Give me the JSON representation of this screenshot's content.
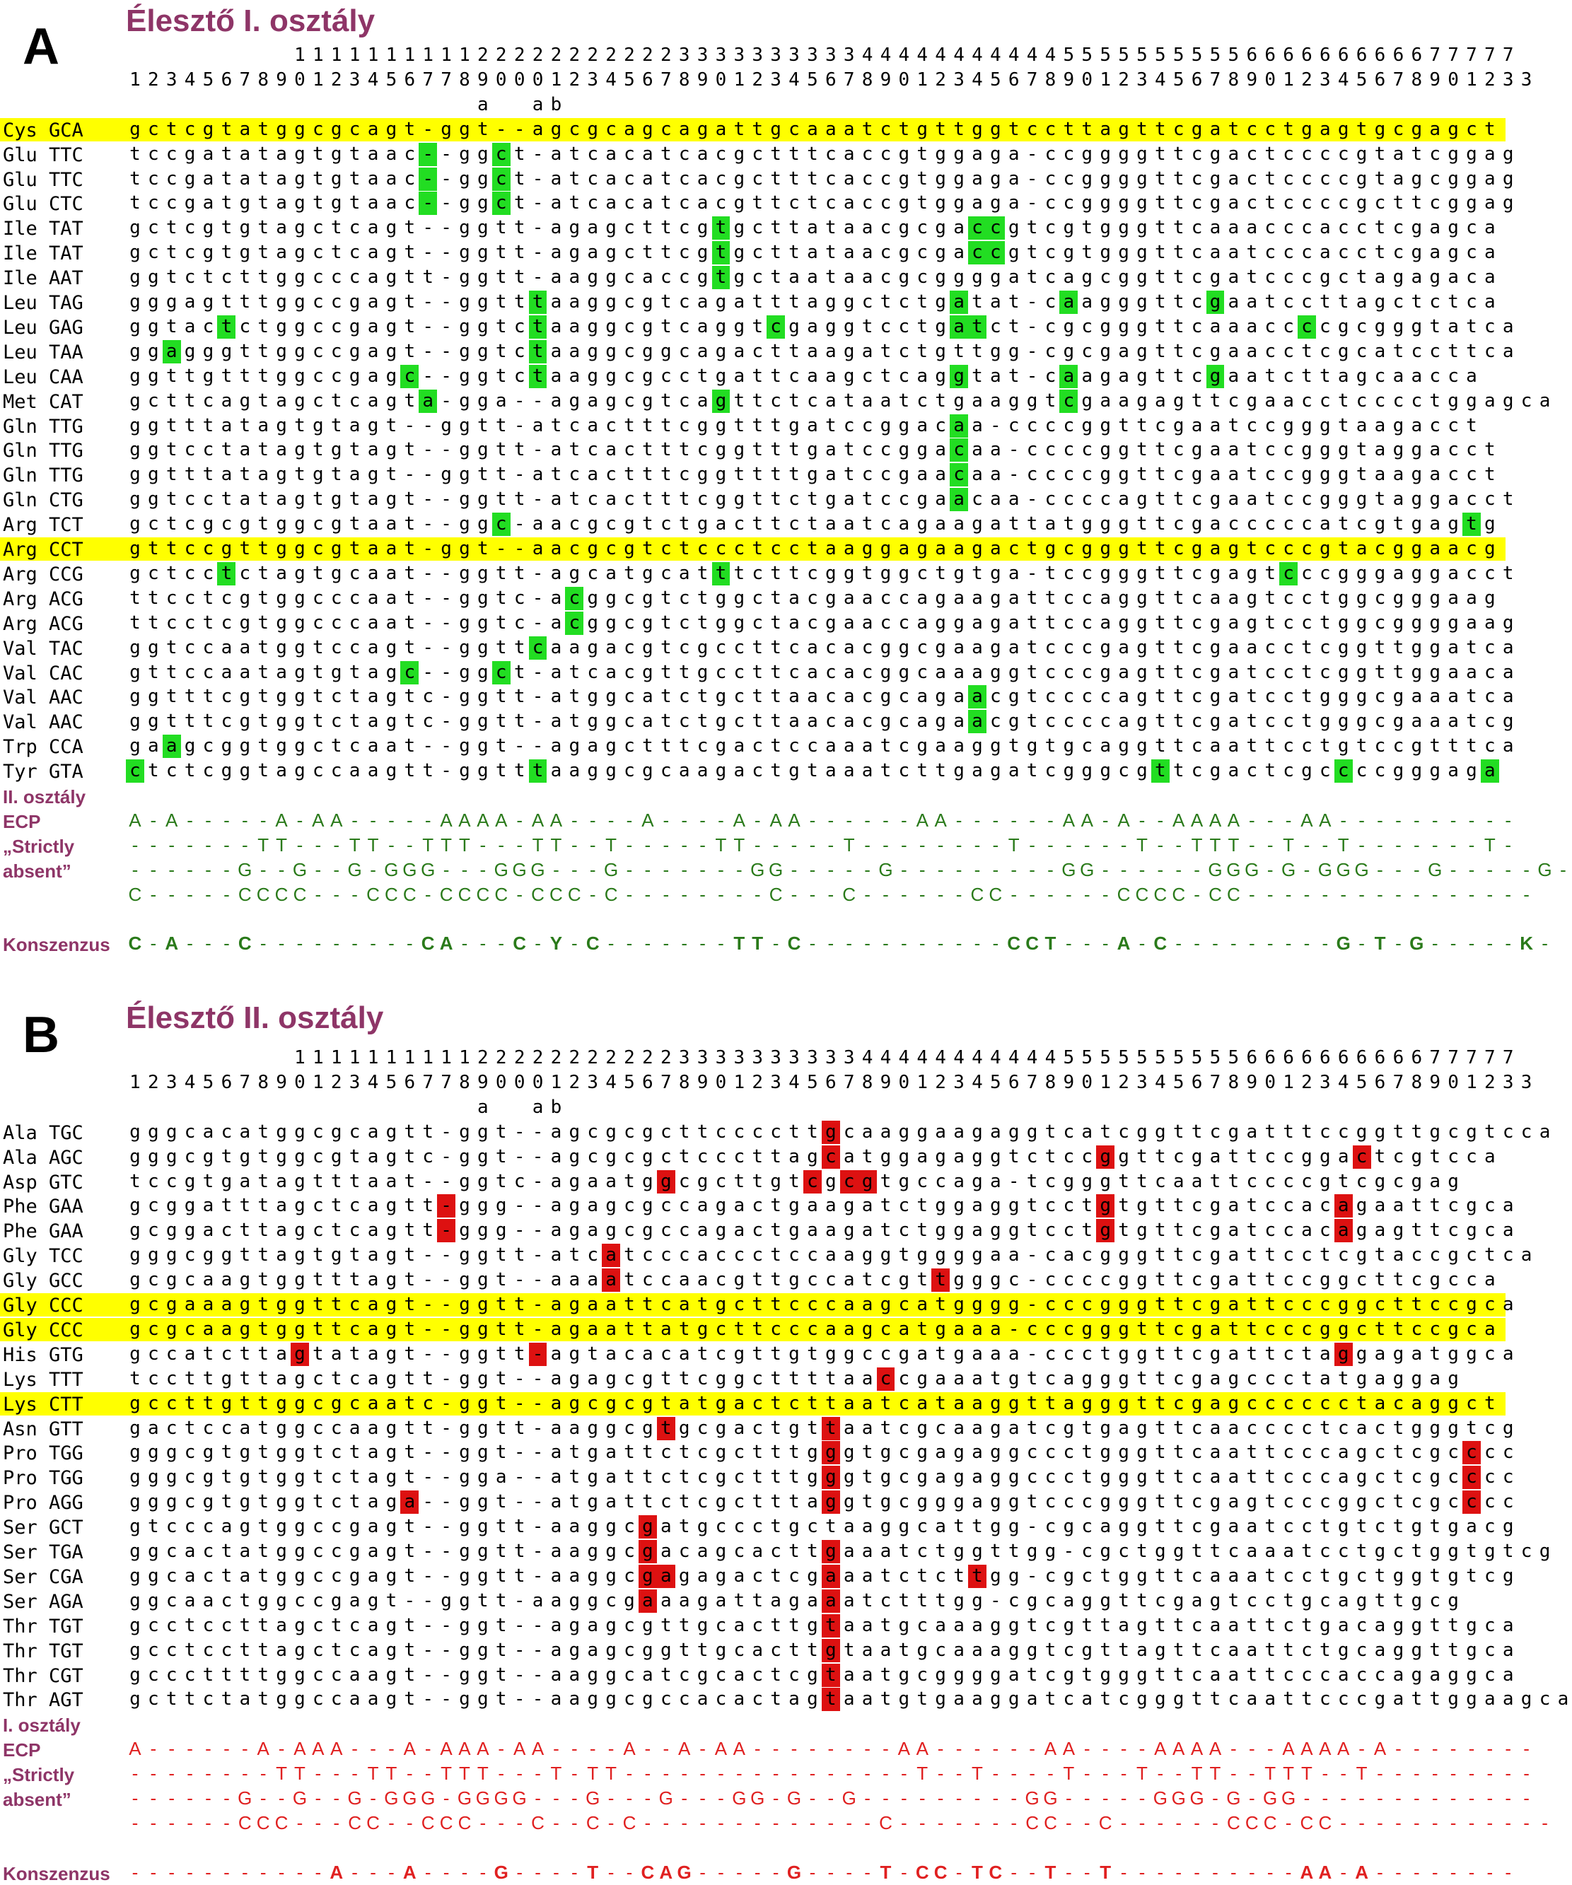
{
  "panel_a": {
    "letter": "A",
    "title": "Élesztő I. osztály",
    "ruler1": "         1111111111222222222223333333333444444444445555555555666666666677777",
    "ruler2": "12345678901234567789000123456789012345678901234567890123456789012345678901233",
    "ruler_ab": "                   a  ab",
    "rows": [
      {
        "label": "Cys GCA",
        "seq": "gctcgtatggcgcagt-ggt--agcgcagcagattgcaaatctgttggtccttagttcgatcctgagtgcgagct",
        "hl": true,
        "marks": []
      },
      {
        "label": "Glu TTC",
        "seq": "tccgatatagtgtaac--ggct-atcacatcacgctttcaccgtggaga-ccggggttcgactccccgtatcggag",
        "marks": [
          16,
          20
        ]
      },
      {
        "label": "Glu TTC",
        "seq": "tccgatatagtgtaac--ggct-atcacatcacgctttcaccgtggaga-ccggggttcgactccccgtagcggag",
        "marks": [
          16,
          20
        ]
      },
      {
        "label": "Glu CTC",
        "seq": "tccgatgtagtgtaac--ggct-atcacatcacgttctcaccgtggaga-ccggggttcgactccccgcttcggag",
        "marks": [
          16,
          20
        ]
      },
      {
        "label": "Ile TAT",
        "seq": "gctcgtgtagctcagt--ggtt-agagcttcgtgcttataacgcgaccgtcgtgggttcaaacccacctcgagca",
        "marks": [
          32,
          46,
          47
        ]
      },
      {
        "label": "Ile TAT",
        "seq": "gctcgtgtagctcagt--ggtt-agagcttcgtgcttataacgcgaccgtcgtgggttcaatcccacctcgagca",
        "marks": [
          32,
          46,
          47
        ]
      },
      {
        "label": "Ile AAT",
        "seq": "ggtctcttggcccagtt-ggtt-aaggcaccgtgctaataacgcggggatcagcggttcgatcccgctagagaca",
        "marks": [
          32
        ]
      },
      {
        "label": "Leu TAG",
        "seq": "gggagtttggccgagt--ggtttaaggcgtcagatttaggctctgatat-caagggttcgaatccttagctctca",
        "marks": [
          22,
          45,
          51,
          59
        ]
      },
      {
        "label": "Leu GAG",
        "seq": "ggtactctggccgagt--ggtctaaggcgtcaggtcgaggtcctgatct-cgcgggttcaaaccccgcgggtatca",
        "marks": [
          5,
          22,
          35,
          45,
          46,
          64
        ]
      },
      {
        "label": "Leu TAA",
        "seq": "ggagggttggccgagt--ggtctaaggcggcagacttaagatctgttgg-cgcgagttcgaacctcgcatccttca",
        "marks": [
          2,
          22
        ]
      },
      {
        "label": "Leu CAA",
        "seq": "ggttgtttggccgagc--ggtctaaggcgcctgattcaagctcaggtat-caagagttcgaatcttagcaacca",
        "marks": [
          15,
          22,
          45,
          51,
          59
        ]
      },
      {
        "label": "Met CAT",
        "seq": "gcttcagtagctcagta-gga--agagcgtcagttctcataatctgaaggtcgaagagttcgaacctcccctggagca",
        "marks": [
          16,
          32,
          51
        ]
      },
      {
        "label": "Gln TTG",
        "seq": "ggtttatagtgtagt--ggtt-atcactttcggtttgatccggacaa-ccccggttcgaatccgggtaagacct",
        "marks": [
          45
        ]
      },
      {
        "label": "Gln TTG",
        "seq": "ggtcctatagtgtagt--ggtt-atcactttcggtttgatccggacaa-ccccggttcgaatccgggtaggacct",
        "marks": [
          45
        ]
      },
      {
        "label": "Gln TTG",
        "seq": "ggtttatagtgtagt--ggtt-atcactttcggttttgatccgaacaa-ccccggttcgaatccgggtaagacct",
        "marks": [
          45
        ]
      },
      {
        "label": "Gln CTG",
        "seq": "ggtcctatagtgtagt--ggtt-atcactttcggttctgatccgaacaa-ccccagttcgaatccgggtaggacct",
        "marks": [
          45
        ]
      },
      {
        "label": "Arg TCT",
        "seq": "gctcgcgtggcgtaat--ggc-aacgcgtctgacttctaatcagaagattatgggttcgacccccatcgtgagtg",
        "marks": [
          20,
          73
        ]
      },
      {
        "label": "Arg CCT",
        "seq": "gttccgttggcgtaat-ggt--aacgcgtctccctcctaaggagaagactgcgggttcgagtcccgtacggaacg",
        "hl": true,
        "marks": []
      },
      {
        "label": "Arg CCG",
        "seq": "gctcctctagtgcaat--ggtt-agcatgcatttcttcggtggctgtga-tccgggttcgagtcccgggaggacct",
        "marks": [
          5,
          32,
          63
        ]
      },
      {
        "label": "Arg ACG",
        "seq": "ttcctcgtggcccaat--ggtc-acggcgtctggctacgaaccagaagattccaggttcaagtcctggcgggaag",
        "marks": [
          24
        ]
      },
      {
        "label": "Arg ACG",
        "seq": "ttcctcgtggcccaat--ggtc-acggcgtctggctacgaaccaggagattccaggttcgagtcctggcggggaag",
        "marks": [
          24
        ]
      },
      {
        "label": "Val TAC",
        "seq": "ggtccaatggtccagt--ggttcaagacgtcgccttcacacggcgaagatcccgagttcgaacctcggttggatca",
        "marks": [
          22
        ]
      },
      {
        "label": "Val CAC",
        "seq": "gttccaatagtgtagc--ggct-atcacgttgccttcacacggcaaaggtcccgagttcgatcctcggttggaaca",
        "marks": [
          15,
          20
        ]
      },
      {
        "label": "Val AAC",
        "seq": "ggtttcgtggtctagtc-ggtt-atggcatctgcttaacacgcagaacgtccccagttcgatcctgggcgaaatca",
        "marks": [
          46
        ]
      },
      {
        "label": "Val AAC",
        "seq": "ggtttcgtggtctagtc-ggtt-atggcatctgcttaacacgcagaacgtccccagttcgatcctgggcgaaatcg",
        "marks": [
          46
        ]
      },
      {
        "label": "Trp CCA",
        "seq": "gaagcggtggctcaat--ggt--agagctttcgactccaaatcgaaggtgtgcaggttcaattcctgtccgtttca",
        "marks": [
          2
        ]
      },
      {
        "label": "Tyr GTA",
        "seq": "ctctcggtagccaagtt-ggtttaaggcgcaagactgtaaatcttgagatcgggcgttcgactcgccccgggaga",
        "marks": [
          0,
          22,
          56,
          66,
          74
        ]
      }
    ],
    "other_class_label": "II. osztály",
    "ecp_label": "ECP",
    "strict_label1": "„Strictly",
    "strict_label2": "absent”",
    "consensus_label": "Konszenzus",
    "ecp": "A-A-----A-AA-----AAAA-AA----A----A-AA------AA------AA-A--AAAA---AA----------",
    "strict1": "-------TT---TT--TTT---TT--T-----TT-----T--------T------T--TTT--T--T-------T-",
    "strict2": "------G--G--G-GGG---GGG---G-------GG-----G---------GG------GGG-G-GGG---G-----G-",
    "strict3": "C-----CCCC---CCC-CCCC-CCC-C--------C---C------CC------CCCC-CC----------------",
    "consensus": "C-A---C---------CA---C-Y-C-------TT-C-----------CCT---A-C---------G-T-G-----K-"
  },
  "panel_b": {
    "letter": "B",
    "title": "Élesztő II. osztály",
    "ruler1": "         1111111111222222222223333333333444444444445555555555666666666677777",
    "ruler2": "12345678901234567789000123456789012345678901234567890123456789012345678901233",
    "ruler_ab": "                   a  ab",
    "rows": [
      {
        "label": "Ala TGC",
        "seq": "gggcacatggcgcagtt-ggt--agcgcgcttccccttgcaaggaagaggtcatcggttcgatttccggttgcgtcca",
        "marks": [
          38
        ]
      },
      {
        "label": "Ala AGC",
        "seq": "gggcgtgtggcgtagtc-ggt--agcgcgctcccttagcatggagaggtctccggttcgattccggactcgtcca",
        "marks": [
          38,
          53,
          67
        ]
      },
      {
        "label": "Asp GTC",
        "seq": "tccgtgatagtttaat--ggtc-agaatggcgcttgtcgcgtgccaga-tcgggttcaattccccgtcgcgag",
        "marks": [
          29,
          37,
          39,
          40
        ]
      },
      {
        "label": "Phe GAA",
        "seq": "gcggatttagctcagtt-ggg--agagcgccagactgaagatctggaggtcctgtgttcgatccacagaattcgca",
        "marks": [
          17,
          53,
          66
        ]
      },
      {
        "label": "Phe GAA",
        "seq": "gcggacttagctcagtt-ggg--agagcgccagactgaagatctggaggtcctgtgttcgatccacagagttcgca",
        "marks": [
          17,
          53,
          66
        ]
      },
      {
        "label": "Gly TCC",
        "seq": "gggcggttagtgtagt--ggtt-atcatcccaccctccaaggtggggaa-cacgggttcgattcctcgtaccgctca",
        "marks": [
          26
        ]
      },
      {
        "label": "Gly GCC",
        "seq": "gcgcaagtggtttagt--ggt--aaaatccaacgttgccatcgttgggc-ccccggttcgattccggcttcgcca",
        "marks": [
          26,
          44
        ]
      },
      {
        "label": "Gly CCC",
        "seq": "gcgaaagtggttcagt--ggtt-agaattcatgcttcccaagcatgggg-cccgggttcgattcccggcttccgca",
        "hl": true,
        "marks": []
      },
      {
        "label": "Gly CCC",
        "seq": "gcgcaagtggttcagt--ggtt-agaattatgcttcccaagcatgaaa-cccgggttcgattcccggcttccgca",
        "hl": true,
        "marks": []
      },
      {
        "label": "His GTG",
        "seq": "gccatcttagtatagt--ggtt-agtacacatcgttgtggccgatgaaa-ccctggttcgattctaggagatggca",
        "marks": [
          9,
          22,
          66
        ]
      },
      {
        "label": "Lys TTT",
        "seq": "tccttgttagctcagtt-ggt--agagcgttcggcttttaaccgaaatgtcagggttcgagccctatgaggag",
        "marks": [
          41
        ]
      },
      {
        "label": "Lys CTT",
        "seq": "gccttgttggcgcaatc-ggt--agcgcgtatgactcttaatcataaggttagggttcgagcccccctacaggct",
        "hl": true,
        "marks": []
      },
      {
        "label": "Asn GTT",
        "seq": "gactccatggccaagtt-ggtt-aaggcgtgcgactgttaatcgcaagatcgtgagttcaacccctcactgggtcg",
        "marks": [
          29,
          38
        ]
      },
      {
        "label": "Pro TGG",
        "seq": "gggcgtgtggtctagt--ggt--atgattctcgctttgggtgcgagaggccctgggttcaattcccagctcgcccc",
        "marks": [
          38,
          73
        ]
      },
      {
        "label": "Pro TGG",
        "seq": "gggcgtgtggtctagt--gga--atgattctcgctttgggtgcgagaggccctgggttcaattcccagctcgcccc",
        "marks": [
          38,
          73
        ]
      },
      {
        "label": "Pro AGG",
        "seq": "gggcgtgtggtctaga--ggt--atgattctcgctttaggtgcgggaggtcccgggttcgagtcccggctcgcccc",
        "marks": [
          15,
          38,
          73
        ]
      },
      {
        "label": "Ser GCT",
        "seq": "gtcccagtggccgagt--ggtt-aaggcgatgccctgctaaggcattgg-cgcaggttcgaatcctgtctgtgacg",
        "marks": [
          28
        ]
      },
      {
        "label": "Ser TGA",
        "seq": "ggcactatggccgagt--ggtt-aaggcgacagcacttgaaatctggttgg-cgctggttcaaatcctgctggtgtcg",
        "marks": [
          28,
          38
        ]
      },
      {
        "label": "Ser CGA",
        "seq": "ggcactatggccgagt--ggtt-aaggcgagagactcgaaatctcttgg-cgctggttcaaatcctgctggtgtcg",
        "marks": [
          28,
          29,
          38,
          46
        ]
      },
      {
        "label": "Ser AGA",
        "seq": "ggcaactggccgagt--ggtt-aaggcgaaagattagaaatctttgg-cgcaggttcgagtcctgcagttgcg",
        "marks": [
          28,
          38
        ]
      },
      {
        "label": "Thr TGT",
        "seq": "gcctccttagctcagt--ggt--agagcgttgcacttgtaatgcaaaggtcgttagttcaattctgacaggttgca",
        "marks": [
          38
        ]
      },
      {
        "label": "Thr TGT",
        "seq": "gcctccttagctcagt--ggt--agagcggttgcacttgtaatgcaaaggtcgttagttcaattctgcaggttgca",
        "marks": [
          38
        ]
      },
      {
        "label": "Thr CGT",
        "seq": "gcccttttggccaagt--ggt--aaggcatcgcactcgtaatgcggggatcgtgggttcaattcccaccagaggca",
        "marks": [
          38
        ]
      },
      {
        "label": "Thr AGT",
        "seq": "gcttctatggccaagt--ggt--aaggcgccacactagtaatgtgaaggatcatcgggttcaattcccgattggaagca",
        "marks": [
          38
        ]
      }
    ],
    "other_class_label": "I. osztály",
    "ecp_label": "ECP",
    "strict_label1": "„Strictly",
    "strict_label2": "absent”",
    "consensus_label": "Konszenzus",
    "ecp": "A------A-AAA---A-AAA-AA----A--A-AA--------AA------AA----AAAA---AAAA-A--------",
    "strict1": "--------TT---TT--TTT---T-TT----------------T--T----T---T--TT--TTT--T---------",
    "strict2": "------G--G--G-GGG-GGGG---G---G---GG-G--G---------GG-----GGG-G-GG-------------",
    "strict3": "------CCC---CC--CCC---C--C-C-------------C-------CC--C------CCC-CC------------",
    "consensus": "-----------A---A----G----T--CAG-----G----T-CC-TC--T--T----------AA-A--------"
  },
  "colors": {
    "title": "#8e3567",
    "highlight": "#ffff00",
    "class_i_mark": "#22dd22",
    "class_ii_mark": "#dd1111",
    "class_i_text": "#2a7a1a",
    "class_ii_text": "#e02020"
  }
}
